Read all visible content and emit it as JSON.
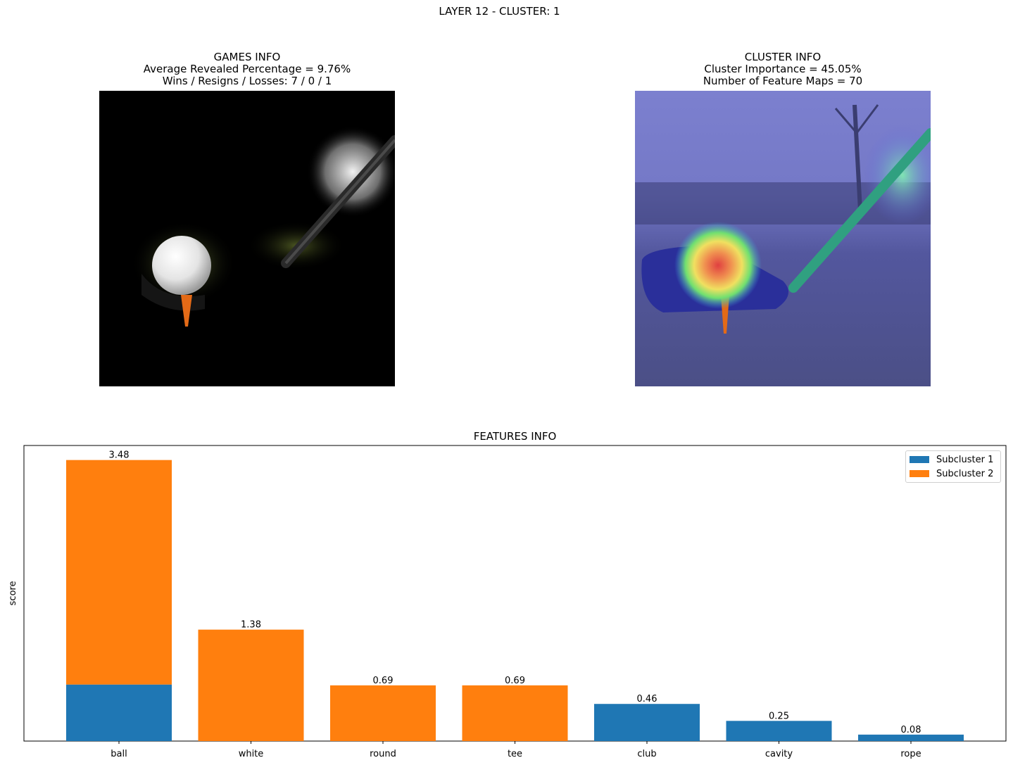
{
  "suptitle": "LAYER 12 - CLUSTER: 1",
  "games_info": {
    "title": "GAMES INFO",
    "line1": "Average Revealed Percentage = 9.76%",
    "line2": "Wins / Resigns / Losses: 7 / 0 / 1"
  },
  "cluster_info": {
    "title": "CLUSTER INFO",
    "line1": "Cluster Importance = 45.05%",
    "line2": "Number of Feature Maps = 70"
  },
  "images": {
    "left": "masked golf ball and club photo",
    "right": "golf photo with heatmap overlay"
  },
  "colors": {
    "subcluster1": "#1f77b4",
    "subcluster2": "#ff7f0e"
  },
  "chart_data": {
    "type": "bar",
    "stacked": true,
    "title": "FEATURES INFO",
    "xlabel": "",
    "ylabel": "score",
    "categories": [
      "ball",
      "white",
      "round",
      "tee",
      "club",
      "cavity",
      "rope"
    ],
    "series": [
      {
        "name": "Subcluster 1",
        "values": [
          0.7,
          0,
          0,
          0,
          0.46,
          0.25,
          0.08
        ]
      },
      {
        "name": "Subcluster 2",
        "values": [
          2.78,
          1.38,
          0.69,
          0.69,
          0,
          0,
          0
        ]
      }
    ],
    "totals": [
      "3.48",
      "1.38",
      "0.69",
      "0.69",
      "0.46",
      "0.25",
      "0.08"
    ],
    "ylim": [
      0,
      3.66
    ],
    "y_ticks_shown": false,
    "grid": false,
    "legend": "upper-right"
  }
}
